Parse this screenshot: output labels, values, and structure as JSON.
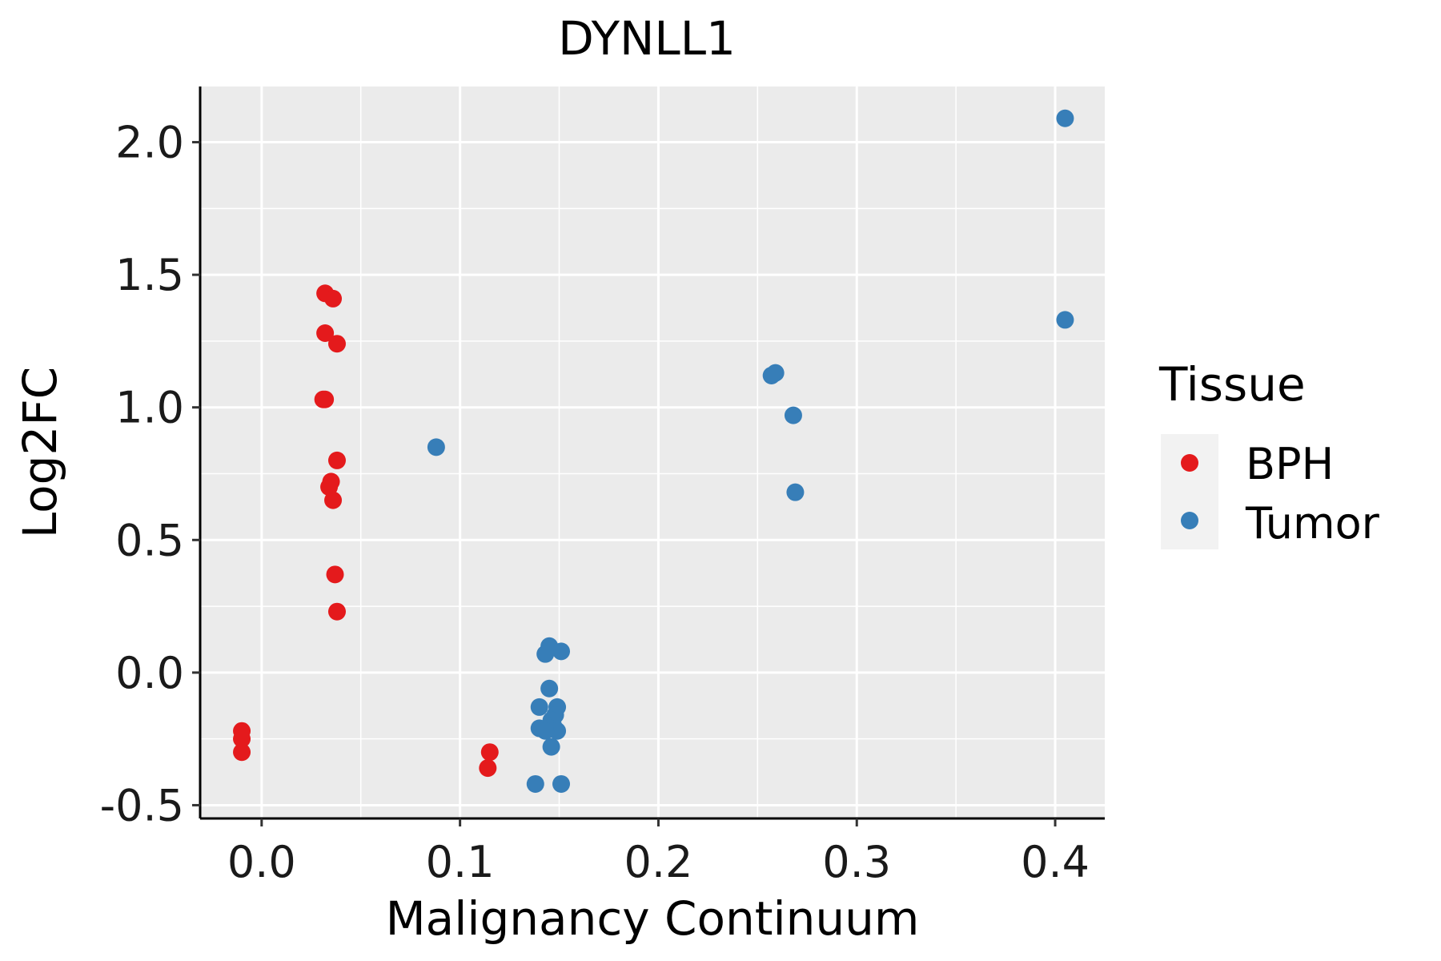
{
  "chart_data": {
    "type": "scatter",
    "title": "DYNLL1",
    "xlabel": "Malignancy Continuum",
    "ylabel": "Log2FC",
    "xlim": [
      -0.031,
      0.425
    ],
    "ylim": [
      -0.55,
      2.21
    ],
    "x_ticks": [
      0.0,
      0.1,
      0.2,
      0.3,
      0.4
    ],
    "x_tick_labels": [
      "0.0",
      "0.1",
      "0.2",
      "0.3",
      "0.4"
    ],
    "y_ticks": [
      -0.5,
      0.0,
      0.5,
      1.0,
      1.5,
      2.0
    ],
    "y_tick_labels": [
      "-0.5",
      "0.0",
      "0.5",
      "1.0",
      "1.5",
      "2.0"
    ],
    "grid": true,
    "legend": {
      "title": "Tissue",
      "position": "right",
      "entries": [
        {
          "label": "BPH",
          "color": "#e41a1c"
        },
        {
          "label": "Tumor",
          "color": "#377eb8"
        }
      ]
    },
    "background": "#ebebeb",
    "series": [
      {
        "name": "BPH",
        "color": "#e41a1c",
        "points": [
          {
            "x": -0.01,
            "y": -0.22
          },
          {
            "x": -0.01,
            "y": -0.25
          },
          {
            "x": -0.01,
            "y": -0.3
          },
          {
            "x": 0.032,
            "y": 1.43
          },
          {
            "x": 0.036,
            "y": 1.41
          },
          {
            "x": 0.032,
            "y": 1.28
          },
          {
            "x": 0.038,
            "y": 1.24
          },
          {
            "x": 0.031,
            "y": 1.03
          },
          {
            "x": 0.032,
            "y": 1.03
          },
          {
            "x": 0.038,
            "y": 0.8
          },
          {
            "x": 0.035,
            "y": 0.72
          },
          {
            "x": 0.034,
            "y": 0.7
          },
          {
            "x": 0.036,
            "y": 0.65
          },
          {
            "x": 0.037,
            "y": 0.37
          },
          {
            "x": 0.038,
            "y": 0.23
          },
          {
            "x": 0.115,
            "y": -0.3
          },
          {
            "x": 0.114,
            "y": -0.36
          }
        ]
      },
      {
        "name": "Tumor",
        "color": "#377eb8",
        "points": [
          {
            "x": 0.088,
            "y": 0.85
          },
          {
            "x": 0.145,
            "y": 0.1
          },
          {
            "x": 0.151,
            "y": 0.08
          },
          {
            "x": 0.143,
            "y": 0.07
          },
          {
            "x": 0.145,
            "y": -0.06
          },
          {
            "x": 0.14,
            "y": -0.13
          },
          {
            "x": 0.149,
            "y": -0.13
          },
          {
            "x": 0.148,
            "y": -0.16
          },
          {
            "x": 0.146,
            "y": -0.18
          },
          {
            "x": 0.147,
            "y": -0.2
          },
          {
            "x": 0.14,
            "y": -0.21
          },
          {
            "x": 0.145,
            "y": -0.21
          },
          {
            "x": 0.149,
            "y": -0.22
          },
          {
            "x": 0.143,
            "y": -0.22
          },
          {
            "x": 0.146,
            "y": -0.28
          },
          {
            "x": 0.138,
            "y": -0.42
          },
          {
            "x": 0.151,
            "y": -0.42
          },
          {
            "x": 0.257,
            "y": 1.12
          },
          {
            "x": 0.259,
            "y": 1.13
          },
          {
            "x": 0.268,
            "y": 0.97
          },
          {
            "x": 0.269,
            "y": 0.68
          },
          {
            "x": 0.405,
            "y": 2.09
          },
          {
            "x": 0.405,
            "y": 1.33
          }
        ]
      }
    ]
  }
}
